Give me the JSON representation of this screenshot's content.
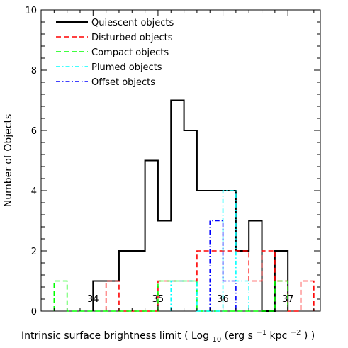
{
  "chart_data": {
    "type": "histogram",
    "xlabel": {
      "prefix": "Intrinsic surface brightness limit ( Log",
      "sub_10": "10",
      "mid1": "(erg s",
      "sup_m1": "−1",
      "mid2": " kpc",
      "sup_m2": "−2",
      "suffix": ") )"
    },
    "ylabel": "Number of Objects",
    "xlim": [
      33.2,
      37.5
    ],
    "ylim": [
      0,
      10
    ],
    "xticks": [
      "34",
      "35",
      "36",
      "37"
    ],
    "yticks": [
      "0",
      "2",
      "4",
      "6",
      "8",
      "10"
    ],
    "series": [
      {
        "name": "Quiescent objects",
        "color": "#000000",
        "dash": "solid",
        "bins": [
          [
            34.0,
            34.2,
            1
          ],
          [
            34.2,
            34.4,
            1
          ],
          [
            34.4,
            34.6,
            2
          ],
          [
            34.6,
            34.8,
            2
          ],
          [
            34.8,
            35.0,
            5
          ],
          [
            35.0,
            35.2,
            3
          ],
          [
            35.2,
            35.4,
            7
          ],
          [
            35.4,
            35.6,
            6
          ],
          [
            35.6,
            35.8,
            4
          ],
          [
            35.8,
            36.0,
            4
          ],
          [
            36.0,
            36.2,
            4
          ],
          [
            36.2,
            36.4,
            2
          ],
          [
            36.4,
            36.6,
            3
          ],
          [
            36.6,
            36.8,
            0
          ],
          [
            36.8,
            37.0,
            2
          ]
        ]
      },
      {
        "name": "Disturbed objects",
        "color": "#ff0000",
        "dash": "dashed",
        "bins": [
          [
            34.2,
            34.4,
            1
          ],
          [
            34.4,
            34.6,
            0
          ],
          [
            34.6,
            34.8,
            0
          ],
          [
            34.8,
            35.0,
            0
          ],
          [
            35.0,
            35.2,
            1
          ],
          [
            35.2,
            35.4,
            1
          ],
          [
            35.4,
            35.6,
            1
          ],
          [
            35.6,
            35.8,
            2
          ],
          [
            35.8,
            36.0,
            2
          ],
          [
            36.0,
            36.2,
            2
          ],
          [
            36.2,
            36.4,
            2
          ],
          [
            36.4,
            36.6,
            1
          ],
          [
            36.6,
            36.8,
            2
          ],
          [
            36.8,
            37.0,
            1
          ],
          [
            37.0,
            37.2,
            0
          ],
          [
            37.2,
            37.4,
            1
          ]
        ]
      },
      {
        "name": "Compact objects",
        "color": "#00ff00",
        "dash": "dashed",
        "bins": [
          [
            33.4,
            33.6,
            1
          ],
          [
            33.6,
            33.8,
            0
          ],
          [
            33.8,
            34.0,
            0
          ],
          [
            34.0,
            34.2,
            0
          ],
          [
            34.2,
            34.4,
            0
          ],
          [
            34.4,
            34.6,
            0
          ],
          [
            34.6,
            34.8,
            0
          ],
          [
            34.8,
            35.0,
            0
          ],
          [
            35.0,
            35.2,
            1
          ],
          [
            35.2,
            35.4,
            1
          ],
          [
            35.4,
            35.6,
            1
          ],
          [
            35.6,
            35.8,
            0
          ],
          [
            35.8,
            36.0,
            0
          ],
          [
            36.0,
            36.2,
            0
          ],
          [
            36.2,
            36.4,
            0
          ],
          [
            36.4,
            36.6,
            0
          ],
          [
            36.6,
            36.8,
            0
          ],
          [
            36.8,
            37.0,
            1
          ]
        ]
      },
      {
        "name": "Plumed objects",
        "color": "#00ffff",
        "dash": "dashdot",
        "bins": [
          [
            35.2,
            35.4,
            1
          ],
          [
            35.4,
            35.6,
            1
          ],
          [
            35.6,
            35.8,
            0
          ],
          [
            35.8,
            36.0,
            0
          ],
          [
            36.0,
            36.2,
            4
          ],
          [
            36.2,
            36.4,
            1
          ]
        ]
      },
      {
        "name": "Offset objects",
        "color": "#0000ff",
        "dash": "dashdot",
        "bins": [
          [
            35.8,
            36.0,
            3
          ],
          [
            36.0,
            36.2,
            1
          ]
        ]
      }
    ],
    "legend_position": "top-left"
  }
}
